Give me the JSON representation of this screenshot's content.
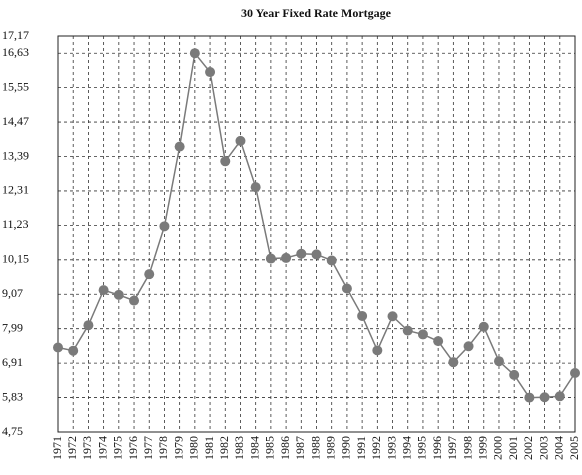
{
  "chart_data": {
    "type": "line",
    "title": "30 Year Fixed Rate Mortgage",
    "categories": [
      "1971",
      "1972",
      "1973",
      "1974",
      "1975",
      "1976",
      "1977",
      "1978",
      "1979",
      "1980",
      "1981",
      "1982",
      "1983",
      "1984",
      "1985",
      "1986",
      "1987",
      "1988",
      "1989",
      "1990",
      "1991",
      "1992",
      "1993",
      "1994",
      "1995",
      "1996",
      "1997",
      "1998",
      "1999",
      "2000",
      "2001",
      "2002",
      "2003",
      "2004",
      "2005"
    ],
    "series": [
      {
        "color": "#7a7a7a",
        "values": [
          7.4,
          7.3,
          8.1,
          9.2,
          9.05,
          8.87,
          9.7,
          11.2,
          13.7,
          16.63,
          16.04,
          13.24,
          13.88,
          12.43,
          10.19,
          10.21,
          10.34,
          10.32,
          10.13,
          9.25,
          8.39,
          7.31,
          8.38,
          7.93,
          7.81,
          7.6,
          6.94,
          7.44,
          8.05,
          6.97,
          6.54,
          5.83,
          5.84,
          5.87,
          6.6
        ]
      }
    ],
    "ylim": [
      4.75,
      17.17
    ],
    "yticks": [
      {
        "value": 4.75,
        "label": "4,75"
      },
      {
        "value": 5.83,
        "label": "5,83"
      },
      {
        "value": 6.91,
        "label": "6,91"
      },
      {
        "value": 7.99,
        "label": "7,99"
      },
      {
        "value": 9.07,
        "label": "9,07"
      },
      {
        "value": 10.15,
        "label": "10,15"
      },
      {
        "value": 11.23,
        "label": "11,23"
      },
      {
        "value": 12.31,
        "label": "12,31"
      },
      {
        "value": 13.39,
        "label": "13,39"
      },
      {
        "value": 14.47,
        "label": "14,47"
      },
      {
        "value": 15.55,
        "label": "15,55"
      },
      {
        "value": 16.63,
        "label": "16,63"
      },
      {
        "value": 17.17,
        "label": "17,17"
      }
    ],
    "grid": true
  }
}
